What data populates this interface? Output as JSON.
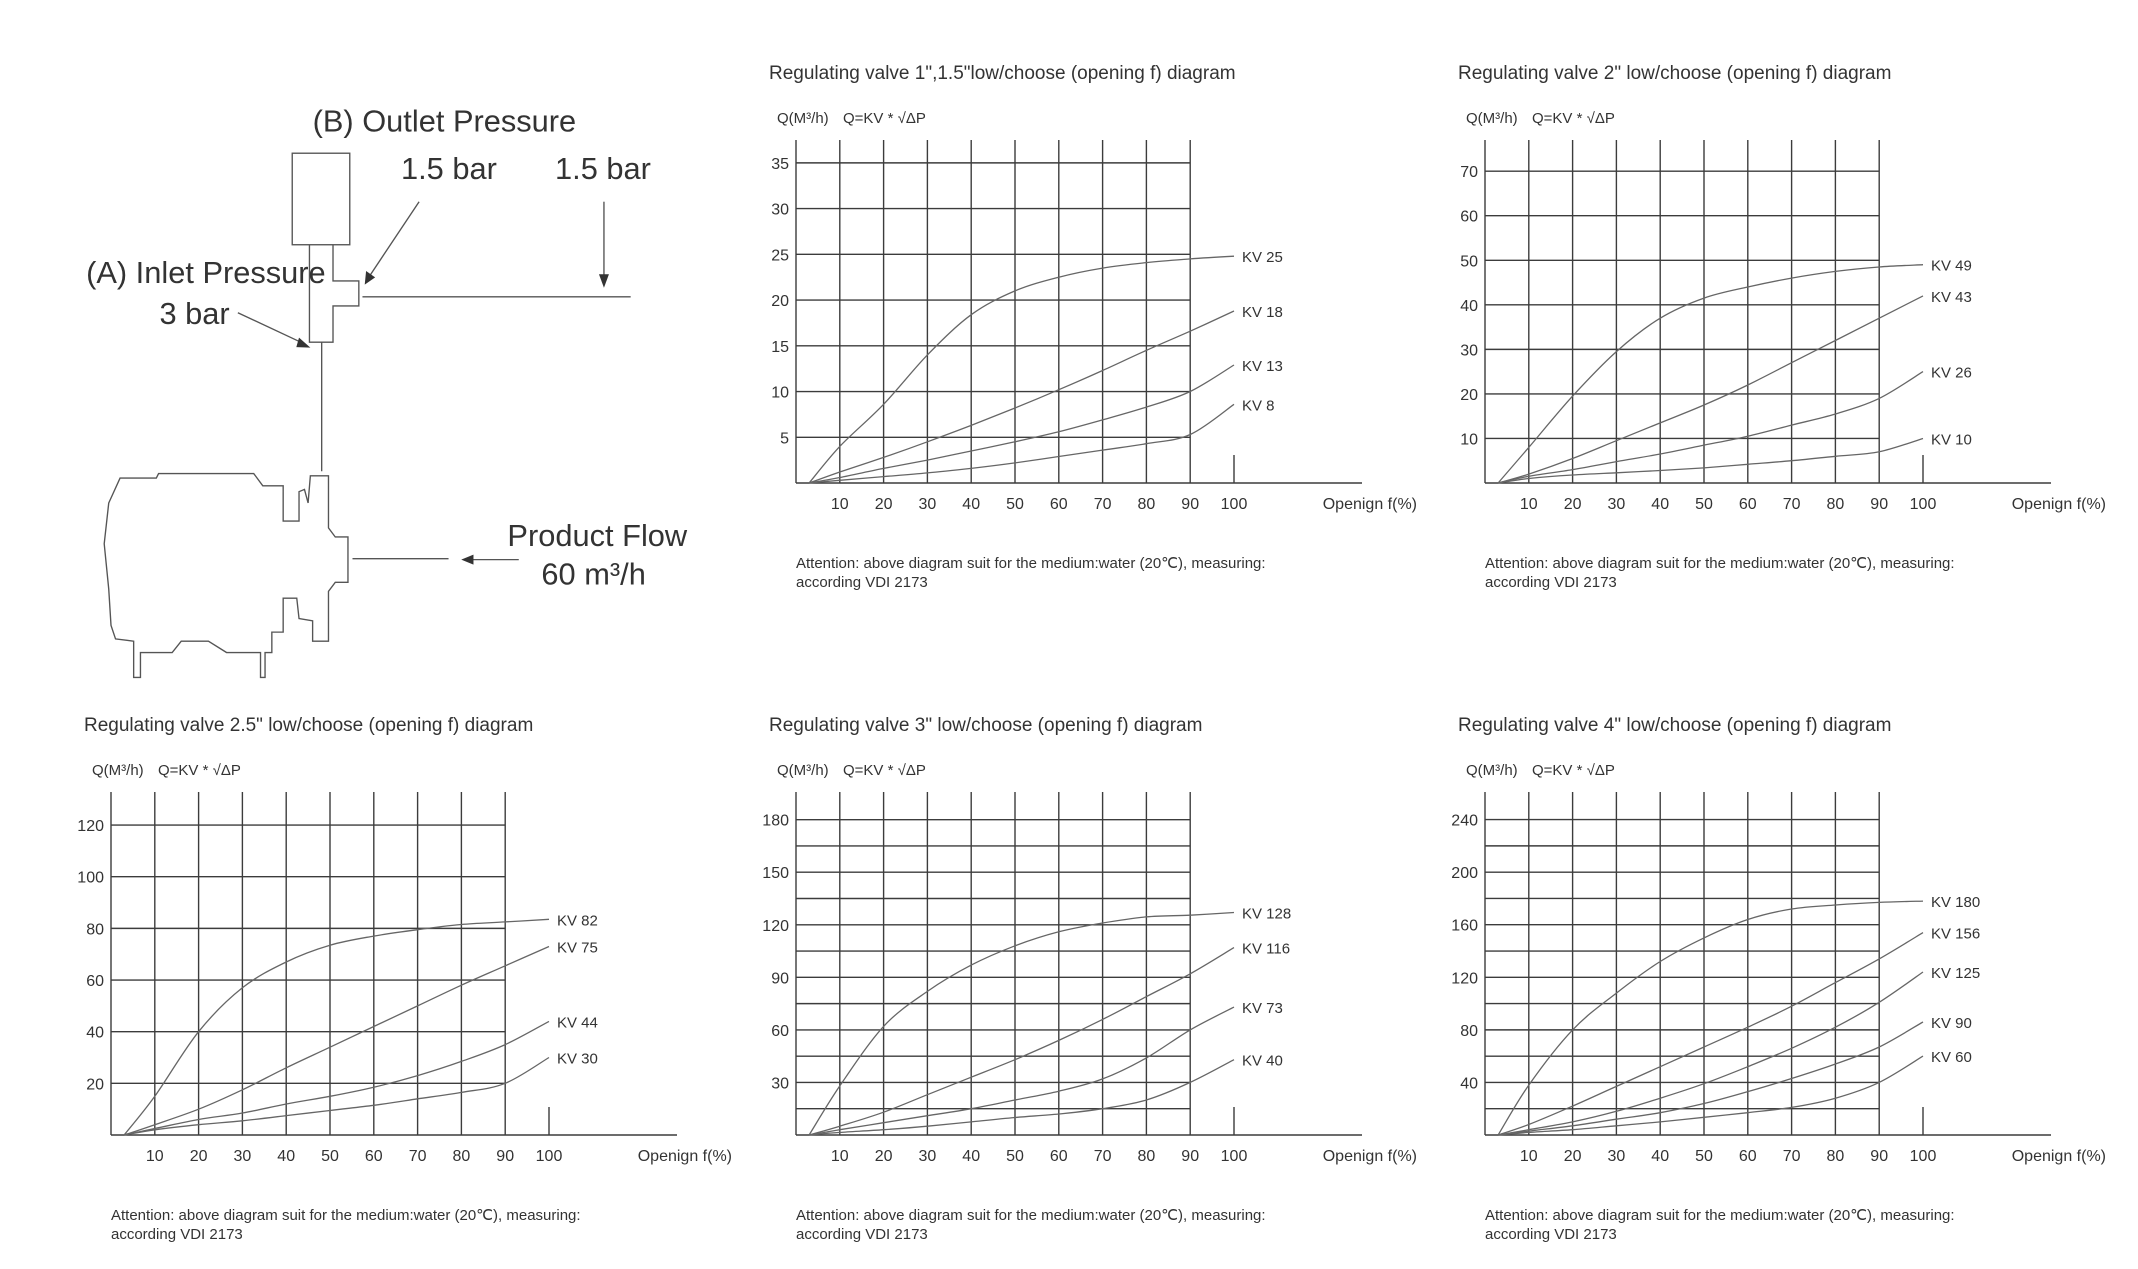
{
  "diagram": {
    "outlet_label": "(B) Outlet Pressure",
    "outlet_value": "1.5 bar",
    "line_value": "1.5 bar",
    "inlet_label": "(A) Inlet Pressure",
    "inlet_value": "3 bar",
    "flow_label": "Product Flow",
    "flow_value": "60 m³/h"
  },
  "chart_data": [
    {
      "type": "line",
      "title": "Regulating valve 1\",1.5\"low/choose (opening f) diagram",
      "ylabel": "Q(M³/h)",
      "formula": "Q=KV * √ΔP",
      "xlabel": "Openign f(%)",
      "x_ticks": [
        10,
        20,
        30,
        40,
        50,
        60,
        70,
        80,
        90,
        100
      ],
      "y_ticks": [
        5,
        10,
        15,
        20,
        25,
        30,
        35
      ],
      "y_grid_step": 5,
      "y_grid_top": 37.5,
      "note": [
        "Attention: above diagram suit for the medium:water (20℃), measuring:",
        "according VDI 2173"
      ],
      "x": [
        3,
        10,
        20,
        30,
        40,
        50,
        60,
        70,
        80,
        90,
        100
      ],
      "series": [
        {
          "name": "KV 25",
          "values": [
            0,
            4,
            8.6,
            14,
            18.4,
            21,
            22.5,
            23.5,
            24.1,
            24.5,
            24.8
          ]
        },
        {
          "name": "KV 18",
          "values": [
            0,
            1.2,
            2.8,
            4.5,
            6.3,
            8.2,
            10.2,
            12.3,
            14.5,
            16.6,
            18.8
          ]
        },
        {
          "name": "KV 13",
          "values": [
            0,
            0.6,
            1.6,
            2.5,
            3.5,
            4.5,
            5.6,
            6.9,
            8.3,
            10,
            12.9
          ]
        },
        {
          "name": "KV 8",
          "values": [
            0,
            0.3,
            0.7,
            1.1,
            1.6,
            2.2,
            2.9,
            3.6,
            4.3,
            5.3,
            8.6
          ]
        }
      ]
    },
    {
      "type": "line",
      "title": "Regulating valve 2\" low/choose (opening f) diagram",
      "ylabel": "Q(M³/h)",
      "formula": "Q=KV * √ΔP",
      "xlabel": "Openign f(%)",
      "x_ticks": [
        10,
        20,
        30,
        40,
        50,
        60,
        70,
        80,
        90,
        100
      ],
      "y_ticks": [
        10,
        20,
        30,
        40,
        50,
        60,
        70
      ],
      "y_grid_step": 10,
      "y_grid_top": 77,
      "note": [
        "Attention: above diagram suit for the medium:water (20℃), measuring:",
        "according VDI 2173"
      ],
      "x": [
        3,
        10,
        20,
        30,
        40,
        50,
        60,
        70,
        80,
        90,
        100
      ],
      "series": [
        {
          "name": "KV 49",
          "values": [
            0,
            8,
            19.5,
            29.5,
            37,
            41.5,
            44,
            46,
            47.5,
            48.5,
            49
          ]
        },
        {
          "name": "KV 43",
          "values": [
            0,
            2,
            5.5,
            9.5,
            13.5,
            17.5,
            22,
            27,
            32,
            37,
            42
          ]
        },
        {
          "name": "KV 26",
          "values": [
            0,
            1.5,
            3,
            4.8,
            6.5,
            8.5,
            10.5,
            13,
            15.5,
            19,
            25
          ]
        },
        {
          "name": "KV 10",
          "values": [
            0,
            1,
            1.8,
            2.3,
            2.8,
            3.4,
            4.2,
            5,
            6,
            7,
            10
          ]
        }
      ]
    },
    {
      "type": "line",
      "title": "Regulating valve 2.5\" low/choose (opening f) diagram",
      "ylabel": "Q(M³/h)",
      "formula": "Q=KV * √ΔP",
      "xlabel": "Openign f(%)",
      "x_ticks": [
        10,
        20,
        30,
        40,
        50,
        60,
        70,
        80,
        90,
        100
      ],
      "y_ticks": [
        20,
        40,
        60,
        80,
        100,
        120
      ],
      "y_grid_step": 20,
      "y_grid_top": 132.8,
      "note": [
        "Attention: above diagram suit for the medium:water (20℃), measuring:",
        "according VDI 2173"
      ],
      "x": [
        3,
        10,
        20,
        30,
        40,
        50,
        60,
        70,
        80,
        90,
        100
      ],
      "series": [
        {
          "name": "KV 82",
          "values": [
            0,
            15,
            40,
            57,
            67,
            73.5,
            77,
            79.5,
            81.5,
            82.5,
            83.5
          ]
        },
        {
          "name": "KV 75",
          "values": [
            0,
            4,
            10,
            17.5,
            26,
            34,
            42,
            50,
            58,
            65.5,
            73
          ]
        },
        {
          "name": "KV 44",
          "values": [
            0,
            2.5,
            6,
            8.5,
            12,
            15,
            18.5,
            23,
            28.5,
            35,
            44
          ]
        },
        {
          "name": "KV 30",
          "values": [
            0,
            2,
            4,
            5.5,
            7.5,
            9.5,
            11.5,
            14,
            16.5,
            20,
            30
          ]
        }
      ]
    },
    {
      "type": "line",
      "title": "Regulating valve 3\" low/choose (opening f) diagram",
      "ylabel": "Q(M³/h)",
      "formula": "Q=KV * √ΔP",
      "xlabel": "Openign f(%)",
      "x_ticks": [
        10,
        20,
        30,
        40,
        50,
        60,
        70,
        80,
        90,
        100
      ],
      "y_ticks": [
        30,
        60,
        90,
        120,
        150,
        180
      ],
      "y_grid_step": 15,
      "y_grid_top": 195.8,
      "note": [
        "Attention: above diagram suit for the medium:water (20℃), measuring:",
        "according VDI 2173"
      ],
      "x": [
        3,
        10,
        20,
        30,
        40,
        50,
        60,
        70,
        80,
        90,
        100
      ],
      "series": [
        {
          "name": "KV 128",
          "values": [
            0,
            28,
            62,
            82,
            97,
            108,
            116,
            121,
            124.5,
            125.5,
            127
          ]
        },
        {
          "name": "KV 116",
          "values": [
            0,
            5,
            13,
            23,
            33,
            43,
            54,
            66,
            79,
            92,
            107
          ]
        },
        {
          "name": "KV 73",
          "values": [
            0,
            3,
            7,
            11,
            15,
            20,
            25,
            32,
            44,
            60,
            73
          ]
        },
        {
          "name": "KV 40",
          "values": [
            0,
            1.5,
            3,
            5,
            7.5,
            10,
            12,
            15,
            20,
            30,
            43
          ]
        }
      ]
    },
    {
      "type": "line",
      "title": "Regulating valve 4\" low/choose (opening f) diagram",
      "ylabel": "Q(M³/h)",
      "formula": "Q=KV * √ΔP",
      "xlabel": "Openign f(%)",
      "x_ticks": [
        10,
        20,
        30,
        40,
        50,
        60,
        70,
        80,
        90,
        100
      ],
      "y_ticks": [
        40,
        80,
        120,
        160,
        200,
        240
      ],
      "y_grid_step": 20,
      "y_grid_top": 261,
      "note": [
        "Attention: above diagram suit for the medium:water (20℃), measuring:",
        "according VDI 2173"
      ],
      "x": [
        3,
        10,
        20,
        30,
        40,
        50,
        60,
        70,
        80,
        90,
        100
      ],
      "series": [
        {
          "name": "KV 180",
          "values": [
            0,
            38,
            80,
            108,
            132,
            150,
            164,
            172,
            175,
            177,
            178
          ]
        },
        {
          "name": "KV 156",
          "values": [
            0,
            8,
            22,
            37,
            52,
            67,
            82,
            98,
            116,
            134,
            154
          ]
        },
        {
          "name": "KV 125",
          "values": [
            0,
            4,
            10,
            18,
            28,
            39,
            52,
            66,
            82,
            101,
            124
          ]
        },
        {
          "name": "KV 90",
          "values": [
            0,
            3,
            7,
            12,
            17,
            24,
            33,
            43,
            54,
            67,
            86
          ]
        },
        {
          "name": "KV 60",
          "values": [
            0,
            2,
            4,
            7,
            10,
            13.5,
            17,
            21,
            28,
            40,
            60
          ]
        }
      ]
    }
  ]
}
